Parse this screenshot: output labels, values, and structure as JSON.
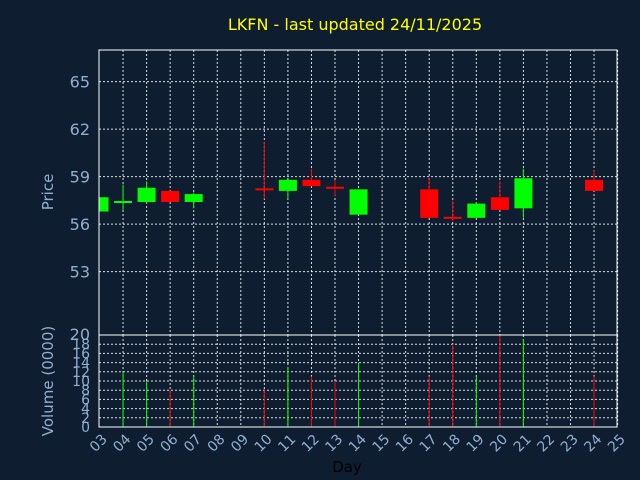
{
  "chart_data": {
    "type": "candlestick",
    "title": "LKFN - last updated 24/11/2025",
    "xlabel": "Day",
    "price_panel": {
      "ylabel": "Price",
      "ylim": [
        49,
        67
      ],
      "yticks": [
        53,
        56,
        59,
        62,
        65
      ]
    },
    "volume_panel": {
      "ylabel": "Volume (0000)",
      "ylim": [
        0,
        20
      ],
      "yticks": [
        0,
        2,
        4,
        6,
        8,
        10,
        12,
        14,
        16,
        18,
        20
      ]
    },
    "x_ticks": [
      "03",
      "04",
      "05",
      "06",
      "07",
      "08",
      "09",
      "10",
      "11",
      "12",
      "13",
      "14",
      "15",
      "16",
      "17",
      "18",
      "19",
      "20",
      "21",
      "22",
      "23",
      "24",
      "25"
    ],
    "grid": true,
    "colors": {
      "up": "#00ff00",
      "down": "#ff0000",
      "background": "#0e1e30",
      "title": "#ffff00",
      "axis_text": "#8fb0d0"
    },
    "candles": [
      {
        "day": "03",
        "open": 56.8,
        "high": 57.7,
        "low": 56.8,
        "close": 57.7,
        "volume": 0
      },
      {
        "day": "04",
        "open": 57.3,
        "high": 58.5,
        "low": 56.9,
        "close": 57.4,
        "volume": 12
      },
      {
        "day": "05",
        "open": 57.4,
        "high": 58.7,
        "low": 57.3,
        "close": 58.3,
        "volume": 10
      },
      {
        "day": "06",
        "open": 58.1,
        "high": 58.1,
        "low": 57.4,
        "close": 57.4,
        "volume": 8
      },
      {
        "day": "07",
        "open": 57.4,
        "high": 58.0,
        "low": 57.0,
        "close": 57.9,
        "volume": 11
      },
      {
        "day": "10",
        "open": 58.2,
        "high": 61.2,
        "low": 57.6,
        "close": 58.1,
        "volume": 8
      },
      {
        "day": "11",
        "open": 58.1,
        "high": 58.8,
        "low": 57.6,
        "close": 58.8,
        "volume": 13
      },
      {
        "day": "12",
        "open": 58.8,
        "high": 59.5,
        "low": 58.4,
        "close": 58.4,
        "volume": 11
      },
      {
        "day": "13",
        "open": 58.3,
        "high": 58.8,
        "low": 57.8,
        "close": 58.2,
        "volume": 10
      },
      {
        "day": "14",
        "open": 56.6,
        "high": 58.2,
        "low": 56.6,
        "close": 58.2,
        "volume": 14
      },
      {
        "day": "17",
        "open": 58.2,
        "high": 58.9,
        "low": 56.4,
        "close": 56.4,
        "volume": 11
      },
      {
        "day": "18",
        "open": 56.4,
        "high": 57.5,
        "low": 56.2,
        "close": 56.3,
        "volume": 18
      },
      {
        "day": "19",
        "open": 56.4,
        "high": 57.4,
        "low": 56.4,
        "close": 57.3,
        "volume": 11
      },
      {
        "day": "20",
        "open": 57.7,
        "high": 58.7,
        "low": 56.9,
        "close": 56.9,
        "volume": 20
      },
      {
        "day": "21",
        "open": 57.0,
        "high": 59.5,
        "low": 56.4,
        "close": 58.9,
        "volume": 19
      },
      {
        "day": "24",
        "open": 58.8,
        "high": 59.4,
        "low": 58.1,
        "close": 58.1,
        "volume": 11
      }
    ]
  }
}
